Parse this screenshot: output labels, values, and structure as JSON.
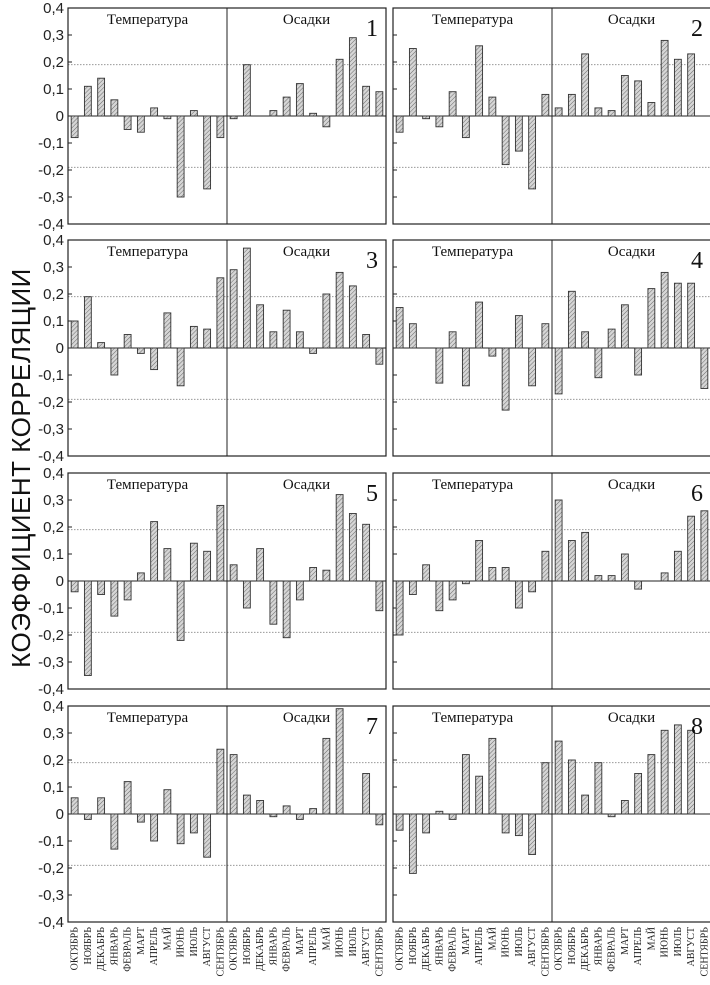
{
  "ylabel": "КОЭФФИЦИЕНТ КОРРЕЛЯЦИИ",
  "chart_data": {
    "type": "bar",
    "ylabel": "КОЭФФИЦИЕНТ КОРРЕЛЯЦИИ",
    "ylim": [
      -0.4,
      0.4
    ],
    "y_ticks": [
      "-0,4",
      "-0,3",
      "-0,2",
      "-0,1",
      "0",
      "0,1",
      "0,2",
      "0,3",
      "0,4"
    ],
    "significance_lines": [
      -0.19,
      0.19
    ],
    "sections": [
      "Температура",
      "Осадки"
    ],
    "categories": [
      "ОКТЯБРЬ",
      "НОЯБРЬ",
      "ДЕКАБРЬ",
      "ЯНВАРЬ",
      "ФЕВРАЛЬ",
      "МАРТ",
      "АПРЕЛЬ",
      "МАЙ",
      "ИЮНЬ",
      "ИЮЛЬ",
      "АВГУСТ",
      "СЕНТЯБРЬ"
    ],
    "panels": [
      {
        "label": "1",
        "temperature": [
          -0.08,
          0.11,
          0.14,
          0.06,
          -0.05,
          -0.06,
          0.03,
          -0.01,
          -0.3,
          0.02,
          -0.27,
          -0.08
        ],
        "precipitation": [
          -0.01,
          0.19,
          0.0,
          0.02,
          0.07,
          0.12,
          0.01,
          -0.04,
          0.21,
          0.29,
          0.11,
          0.09
        ]
      },
      {
        "label": "2",
        "temperature": [
          -0.06,
          0.25,
          -0.01,
          -0.04,
          0.09,
          -0.08,
          0.26,
          0.07,
          -0.18,
          -0.13,
          -0.27,
          0.08
        ],
        "precipitation": [
          0.03,
          0.08,
          0.23,
          0.03,
          0.02,
          0.15,
          0.13,
          0.05,
          0.28,
          0.21,
          0.23,
          0.0
        ]
      },
      {
        "label": "3",
        "temperature": [
          0.1,
          0.19,
          0.02,
          -0.1,
          0.05,
          -0.02,
          -0.08,
          0.13,
          -0.14,
          0.08,
          0.07,
          0.26
        ],
        "precipitation": [
          0.29,
          0.37,
          0.16,
          0.06,
          0.14,
          0.06,
          -0.02,
          0.2,
          0.28,
          0.23,
          0.05,
          -0.06
        ]
      },
      {
        "label": "4",
        "temperature": [
          0.15,
          0.09,
          0.0,
          -0.13,
          0.06,
          -0.14,
          0.17,
          -0.03,
          -0.23,
          0.12,
          -0.14,
          0.09
        ],
        "precipitation": [
          -0.17,
          0.21,
          0.06,
          -0.11,
          0.07,
          0.16,
          -0.1,
          0.22,
          0.28,
          0.24,
          0.24,
          -0.15
        ]
      },
      {
        "label": "5",
        "temperature": [
          -0.04,
          -0.35,
          -0.05,
          -0.13,
          -0.07,
          0.03,
          0.22,
          0.12,
          -0.22,
          0.14,
          0.11,
          0.28
        ],
        "precipitation": [
          0.06,
          -0.1,
          0.12,
          -0.16,
          -0.21,
          -0.07,
          0.05,
          0.04,
          0.32,
          0.25,
          0.21,
          -0.11
        ]
      },
      {
        "label": "6",
        "temperature": [
          -0.2,
          -0.05,
          0.06,
          -0.11,
          -0.07,
          -0.01,
          0.15,
          0.05,
          0.05,
          -0.1,
          -0.04,
          0.11
        ],
        "precipitation": [
          0.3,
          0.15,
          0.18,
          0.02,
          0.02,
          0.1,
          -0.03,
          0.0,
          0.03,
          0.11,
          0.24,
          0.26
        ]
      },
      {
        "label": "7",
        "temperature": [
          0.06,
          -0.02,
          0.06,
          -0.13,
          0.12,
          -0.03,
          -0.1,
          0.09,
          -0.11,
          -0.07,
          -0.16,
          0.24
        ],
        "precipitation": [
          0.22,
          0.07,
          0.05,
          -0.01,
          0.03,
          -0.02,
          0.02,
          0.28,
          0.39,
          0.0,
          0.15,
          -0.04
        ]
      },
      {
        "label": "8",
        "temperature": [
          -0.06,
          -0.22,
          -0.07,
          0.01,
          -0.02,
          0.22,
          0.14,
          0.28,
          -0.07,
          -0.08,
          -0.15,
          0.19
        ],
        "precipitation": [
          0.27,
          0.2,
          0.07,
          0.19,
          -0.01,
          0.05,
          0.15,
          0.22,
          0.31,
          0.33,
          0.31,
          0.0
        ]
      }
    ]
  }
}
